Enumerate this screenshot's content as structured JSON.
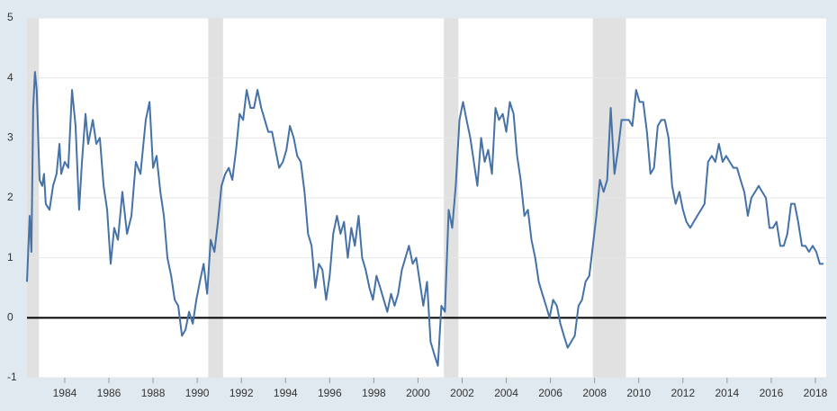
{
  "chart_data": {
    "type": "line",
    "x": [
      1982.29,
      1982.41,
      1982.49,
      1982.57,
      1982.65,
      1982.73,
      1982.86,
      1982.98,
      1983.06,
      1983.14,
      1983.31,
      1983.47,
      1983.63,
      1983.76,
      1983.84,
      1984.0,
      1984.16,
      1984.33,
      1984.49,
      1984.65,
      1984.78,
      1984.94,
      1985.06,
      1985.27,
      1985.43,
      1985.59,
      1985.76,
      1985.92,
      1986.08,
      1986.24,
      1986.41,
      1986.61,
      1986.82,
      1987.02,
      1987.22,
      1987.43,
      1987.67,
      1987.84,
      1988.0,
      1988.16,
      1988.33,
      1988.49,
      1988.65,
      1988.82,
      1988.98,
      1989.14,
      1989.31,
      1989.47,
      1989.63,
      1989.8,
      1989.96,
      1990.12,
      1990.29,
      1990.45,
      1990.61,
      1990.78,
      1990.94,
      1991.1,
      1991.27,
      1991.43,
      1991.59,
      1991.76,
      1991.92,
      1992.08,
      1992.24,
      1992.41,
      1992.57,
      1992.73,
      1992.9,
      1993.06,
      1993.22,
      1993.39,
      1993.55,
      1993.71,
      1993.88,
      1994.04,
      1994.2,
      1994.37,
      1994.53,
      1994.69,
      1994.86,
      1995.02,
      1995.18,
      1995.35,
      1995.51,
      1995.67,
      1995.84,
      1996.0,
      1996.16,
      1996.33,
      1996.49,
      1996.65,
      1996.82,
      1996.98,
      1997.14,
      1997.31,
      1997.47,
      1997.63,
      1997.8,
      1997.96,
      1998.12,
      1998.29,
      1998.45,
      1998.61,
      1998.78,
      1998.94,
      1999.1,
      1999.27,
      1999.43,
      1999.59,
      1999.76,
      1999.92,
      2000.08,
      2000.24,
      2000.41,
      2000.57,
      2000.73,
      2000.9,
      2001.06,
      2001.22,
      2001.39,
      2001.55,
      2001.71,
      2001.88,
      2002.04,
      2002.2,
      2002.37,
      2002.53,
      2002.69,
      2002.86,
      2003.02,
      2003.18,
      2003.35,
      2003.51,
      2003.67,
      2003.84,
      2004.0,
      2004.16,
      2004.33,
      2004.49,
      2004.65,
      2004.82,
      2004.98,
      2005.14,
      2005.31,
      2005.47,
      2005.63,
      2005.8,
      2005.96,
      2006.12,
      2006.29,
      2006.45,
      2006.61,
      2006.78,
      2006.94,
      2007.1,
      2007.27,
      2007.43,
      2007.59,
      2007.76,
      2007.92,
      2008.08,
      2008.24,
      2008.41,
      2008.57,
      2008.73,
      2008.9,
      2009.06,
      2009.22,
      2009.39,
      2009.55,
      2009.71,
      2009.88,
      2010.04,
      2010.2,
      2010.37,
      2010.53,
      2010.69,
      2010.86,
      2011.02,
      2011.18,
      2011.35,
      2011.51,
      2011.67,
      2011.84,
      2012.0,
      2012.16,
      2012.33,
      2012.49,
      2012.65,
      2012.82,
      2012.98,
      2013.14,
      2013.31,
      2013.47,
      2013.63,
      2013.8,
      2013.96,
      2014.12,
      2014.29,
      2014.45,
      2014.61,
      2014.78,
      2014.94,
      2015.1,
      2015.27,
      2015.43,
      2015.59,
      2015.76,
      2015.92,
      2016.08,
      2016.24,
      2016.41,
      2016.57,
      2016.73,
      2016.9,
      2017.06,
      2017.22,
      2017.39,
      2017.55,
      2017.71,
      2017.88,
      2018.04,
      2018.2,
      2018.37
    ],
    "series": [
      {
        "color": "#4572a7",
        "values": [
          0.6,
          1.7,
          1.1,
          3.5,
          4.1,
          3.8,
          2.3,
          2.2,
          2.4,
          1.9,
          1.8,
          2.2,
          2.4,
          2.9,
          2.4,
          2.6,
          2.5,
          3.8,
          3.2,
          1.8,
          2.6,
          3.4,
          2.9,
          3.3,
          2.9,
          3.0,
          2.2,
          1.8,
          0.9,
          1.5,
          1.3,
          2.1,
          1.4,
          1.7,
          2.6,
          2.4,
          3.3,
          3.6,
          2.5,
          2.7,
          2.1,
          1.7,
          1.0,
          0.7,
          0.3,
          0.2,
          -0.3,
          -0.2,
          0.1,
          -0.1,
          0.3,
          0.6,
          0.9,
          0.4,
          1.3,
          1.1,
          1.6,
          2.2,
          2.4,
          2.5,
          2.3,
          2.8,
          3.4,
          3.3,
          3.8,
          3.5,
          3.5,
          3.8,
          3.5,
          3.3,
          3.1,
          3.1,
          2.8,
          2.5,
          2.6,
          2.8,
          3.2,
          3.0,
          2.7,
          2.6,
          2.1,
          1.4,
          1.2,
          0.5,
          0.9,
          0.8,
          0.3,
          0.7,
          1.4,
          1.7,
          1.4,
          1.6,
          1.0,
          1.5,
          1.2,
          1.7,
          1.0,
          0.8,
          0.5,
          0.3,
          0.7,
          0.5,
          0.3,
          0.1,
          0.4,
          0.2,
          0.4,
          0.8,
          1.0,
          1.2,
          0.9,
          1.0,
          0.6,
          0.2,
          0.6,
          -0.4,
          -0.6,
          -0.8,
          0.2,
          0.1,
          1.8,
          1.5,
          2.2,
          3.3,
          3.6,
          3.3,
          3.0,
          2.6,
          2.2,
          3.0,
          2.6,
          2.8,
          2.4,
          3.5,
          3.3,
          3.4,
          3.1,
          3.6,
          3.4,
          2.7,
          2.3,
          1.7,
          1.8,
          1.3,
          1.0,
          0.6,
          0.4,
          0.2,
          0.0,
          0.3,
          0.2,
          -0.1,
          -0.3,
          -0.5,
          -0.4,
          -0.3,
          0.2,
          0.3,
          0.6,
          0.7,
          1.2,
          1.7,
          2.3,
          2.1,
          2.3,
          3.5,
          2.4,
          2.8,
          3.3,
          3.3,
          3.3,
          3.2,
          3.8,
          3.6,
          3.6,
          3.1,
          2.4,
          2.5,
          3.2,
          3.3,
          3.3,
          3.0,
          2.2,
          1.9,
          2.1,
          1.8,
          1.6,
          1.5,
          1.6,
          1.7,
          1.8,
          1.9,
          2.6,
          2.7,
          2.6,
          2.9,
          2.6,
          2.7,
          2.6,
          2.5,
          2.5,
          2.3,
          2.1,
          1.7,
          2.0,
          2.1,
          2.2,
          2.1,
          2.0,
          1.5,
          1.5,
          1.6,
          1.2,
          1.2,
          1.4,
          1.9,
          1.9,
          1.6,
          1.2,
          1.2,
          1.1,
          1.2,
          1.1,
          0.9,
          0.9
        ]
      }
    ],
    "xlim": [
      1982.29,
      2018.49
    ],
    "xticks": [
      1984,
      1986,
      1988,
      1990,
      1992,
      1994,
      1996,
      1998,
      2000,
      2002,
      2004,
      2006,
      2008,
      2010,
      2012,
      2014,
      2016,
      2018
    ],
    "ylim": [
      -1,
      5
    ],
    "yticks": [
      -1,
      0,
      1,
      2,
      3,
      4,
      5
    ],
    "grid": true,
    "hline": 0,
    "recessions": [
      [
        1981.5,
        1982.83
      ],
      [
        1990.5,
        1991.17
      ],
      [
        2001.17,
        2001.83
      ],
      [
        2007.92,
        2009.42
      ]
    ]
  }
}
